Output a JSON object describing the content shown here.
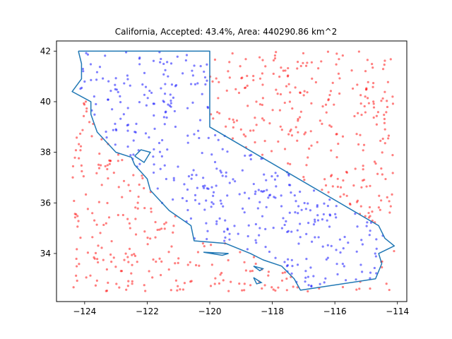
{
  "chart_data": {
    "type": "scatter",
    "title": "California, Accepted: 43.4%, Area: 440290.86 km^2",
    "xlabel": "",
    "ylabel": "",
    "xlim": [
      -124.9,
      -113.7
    ],
    "ylim": [
      32.1,
      42.4
    ],
    "xticks": [
      -124,
      -122,
      -120,
      -118,
      -116,
      -114
    ],
    "yticks": [
      34,
      36,
      38,
      40,
      42
    ],
    "grid": false,
    "sample_bounds": {
      "x": [
        -124.4,
        -114.1
      ],
      "y": [
        32.5,
        42.0
      ]
    },
    "sample_count": 900,
    "accepted_fraction": 0.434,
    "series": [
      {
        "color": "#0000ff",
        "alpha": 0.5
      },
      {
        "color": "#ff0000",
        "alpha": 0.5
      },
      {
        "color": "#1f77b4"
      }
    ],
    "outline": [
      [
        -124.2,
        42.0
      ],
      [
        -120.0,
        42.0
      ],
      [
        -120.0,
        39.0
      ],
      [
        -114.6,
        35.1
      ],
      [
        -114.4,
        34.6
      ],
      [
        -114.1,
        34.3
      ],
      [
        -114.6,
        34.0
      ],
      [
        -114.5,
        33.6
      ],
      [
        -114.7,
        33.0
      ],
      [
        -117.1,
        32.55
      ],
      [
        -117.3,
        33.0
      ],
      [
        -117.7,
        33.5
      ],
      [
        -118.3,
        33.75
      ],
      [
        -118.7,
        34.0
      ],
      [
        -119.5,
        34.4
      ],
      [
        -120.5,
        34.5
      ],
      [
        -120.6,
        35.1
      ],
      [
        -121.3,
        35.7
      ],
      [
        -121.9,
        36.5
      ],
      [
        -122.0,
        36.95
      ],
      [
        -122.4,
        37.5
      ],
      [
        -122.5,
        37.8
      ],
      [
        -123.0,
        38.0
      ],
      [
        -123.6,
        38.8
      ],
      [
        -123.8,
        39.5
      ],
      [
        -123.8,
        40.0
      ],
      [
        -124.4,
        40.4
      ],
      [
        -124.1,
        40.9
      ],
      [
        -124.1,
        41.5
      ],
      [
        -124.2,
        42.0
      ]
    ],
    "islands": [
      [
        [
          -120.2,
          34.05
        ],
        [
          -119.4,
          34.0
        ],
        [
          -119.6,
          33.93
        ],
        [
          -120.2,
          34.05
        ]
      ],
      [
        [
          -118.6,
          33.5
        ],
        [
          -118.3,
          33.4
        ],
        [
          -118.4,
          33.32
        ],
        [
          -118.6,
          33.5
        ]
      ],
      [
        [
          -118.6,
          33.05
        ],
        [
          -118.35,
          32.85
        ],
        [
          -118.5,
          32.8
        ],
        [
          -118.6,
          33.05
        ]
      ]
    ],
    "bay": [
      [
        -122.4,
        37.85
      ],
      [
        -122.2,
        38.1
      ],
      [
        -121.9,
        38.0
      ],
      [
        -122.1,
        37.6
      ],
      [
        -122.4,
        37.85
      ]
    ]
  }
}
